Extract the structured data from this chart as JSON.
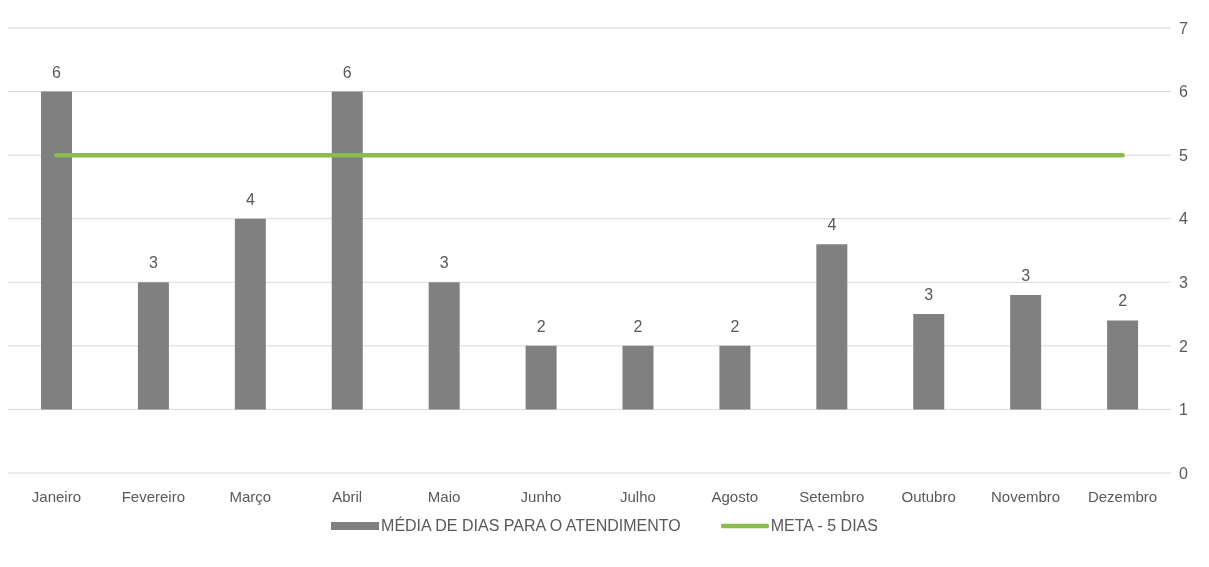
{
  "chart_data": {
    "type": "bar",
    "categories": [
      "Janeiro",
      "Fevereiro",
      "Março",
      "Abril",
      "Maio",
      "Junho",
      "Julho",
      "Agosto",
      "Setembro",
      "Outubro",
      "Novembro",
      "Dezembro"
    ],
    "series": [
      {
        "name": "MÉDIA DE DIAS PARA O ATENDIMENTO",
        "color": "#808080",
        "base": [
          1,
          1,
          1,
          1,
          1,
          1,
          1,
          1,
          1,
          1,
          1,
          1
        ],
        "values": [
          5,
          2,
          3,
          5,
          2,
          1,
          1,
          1,
          2.6,
          1.5,
          1.8,
          1.4
        ],
        "value_labels": [
          "6",
          "3",
          "4",
          "6",
          "3",
          "2",
          "2",
          "2",
          "4",
          "3",
          "3",
          "2"
        ]
      },
      {
        "name": "META - 5 DIAS",
        "type": "line",
        "color": "#8cbc4f",
        "values": [
          5,
          5,
          5,
          5,
          5,
          5,
          5,
          5,
          5,
          5,
          5,
          5
        ]
      }
    ],
    "ylim": [
      0,
      7
    ],
    "yticks": [
      0,
      1,
      2,
      3,
      4,
      5,
      6,
      7
    ],
    "grid": "y",
    "legend": "bottom",
    "marker": "none"
  }
}
